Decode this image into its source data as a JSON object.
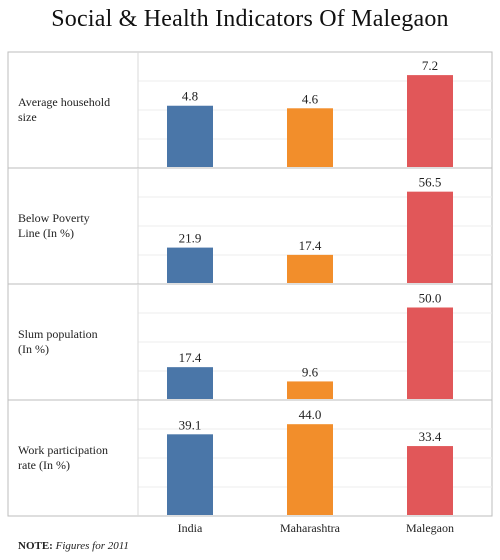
{
  "title": "Social & Health Indicators Of Malegaon",
  "note": {
    "label": "NOTE:",
    "text": "Figures for 2011"
  },
  "chart_data": {
    "type": "bar",
    "categories": [
      "India",
      "Maharashtra",
      "Malegaon"
    ],
    "colors": [
      "#4a76a8",
      "#f28e2b",
      "#e15759"
    ],
    "grid": true,
    "panels": [
      {
        "label": [
          "Average household",
          "size"
        ],
        "values": [
          4.8,
          4.6,
          7.2
        ],
        "value_labels": [
          "4.8",
          "4.6",
          "7.2"
        ],
        "ymax": 7.6
      },
      {
        "label": [
          "Below Poverty",
          "Line (In %)"
        ],
        "values": [
          21.9,
          17.4,
          56.5
        ],
        "value_labels": [
          "21.9",
          "17.4",
          "56.5"
        ],
        "ymax": 60
      },
      {
        "label": [
          "Slum population",
          "(In %)"
        ],
        "values": [
          17.4,
          9.6,
          50.0
        ],
        "value_labels": [
          "17.4",
          "9.6",
          "50.0"
        ],
        "ymax": 53
      },
      {
        "label": [
          "Work participation",
          "rate (In %)"
        ],
        "values": [
          39.1,
          44.0,
          33.4
        ],
        "value_labels": [
          "39.1",
          "44.0",
          "33.4"
        ],
        "ymax": 47
      }
    ]
  }
}
